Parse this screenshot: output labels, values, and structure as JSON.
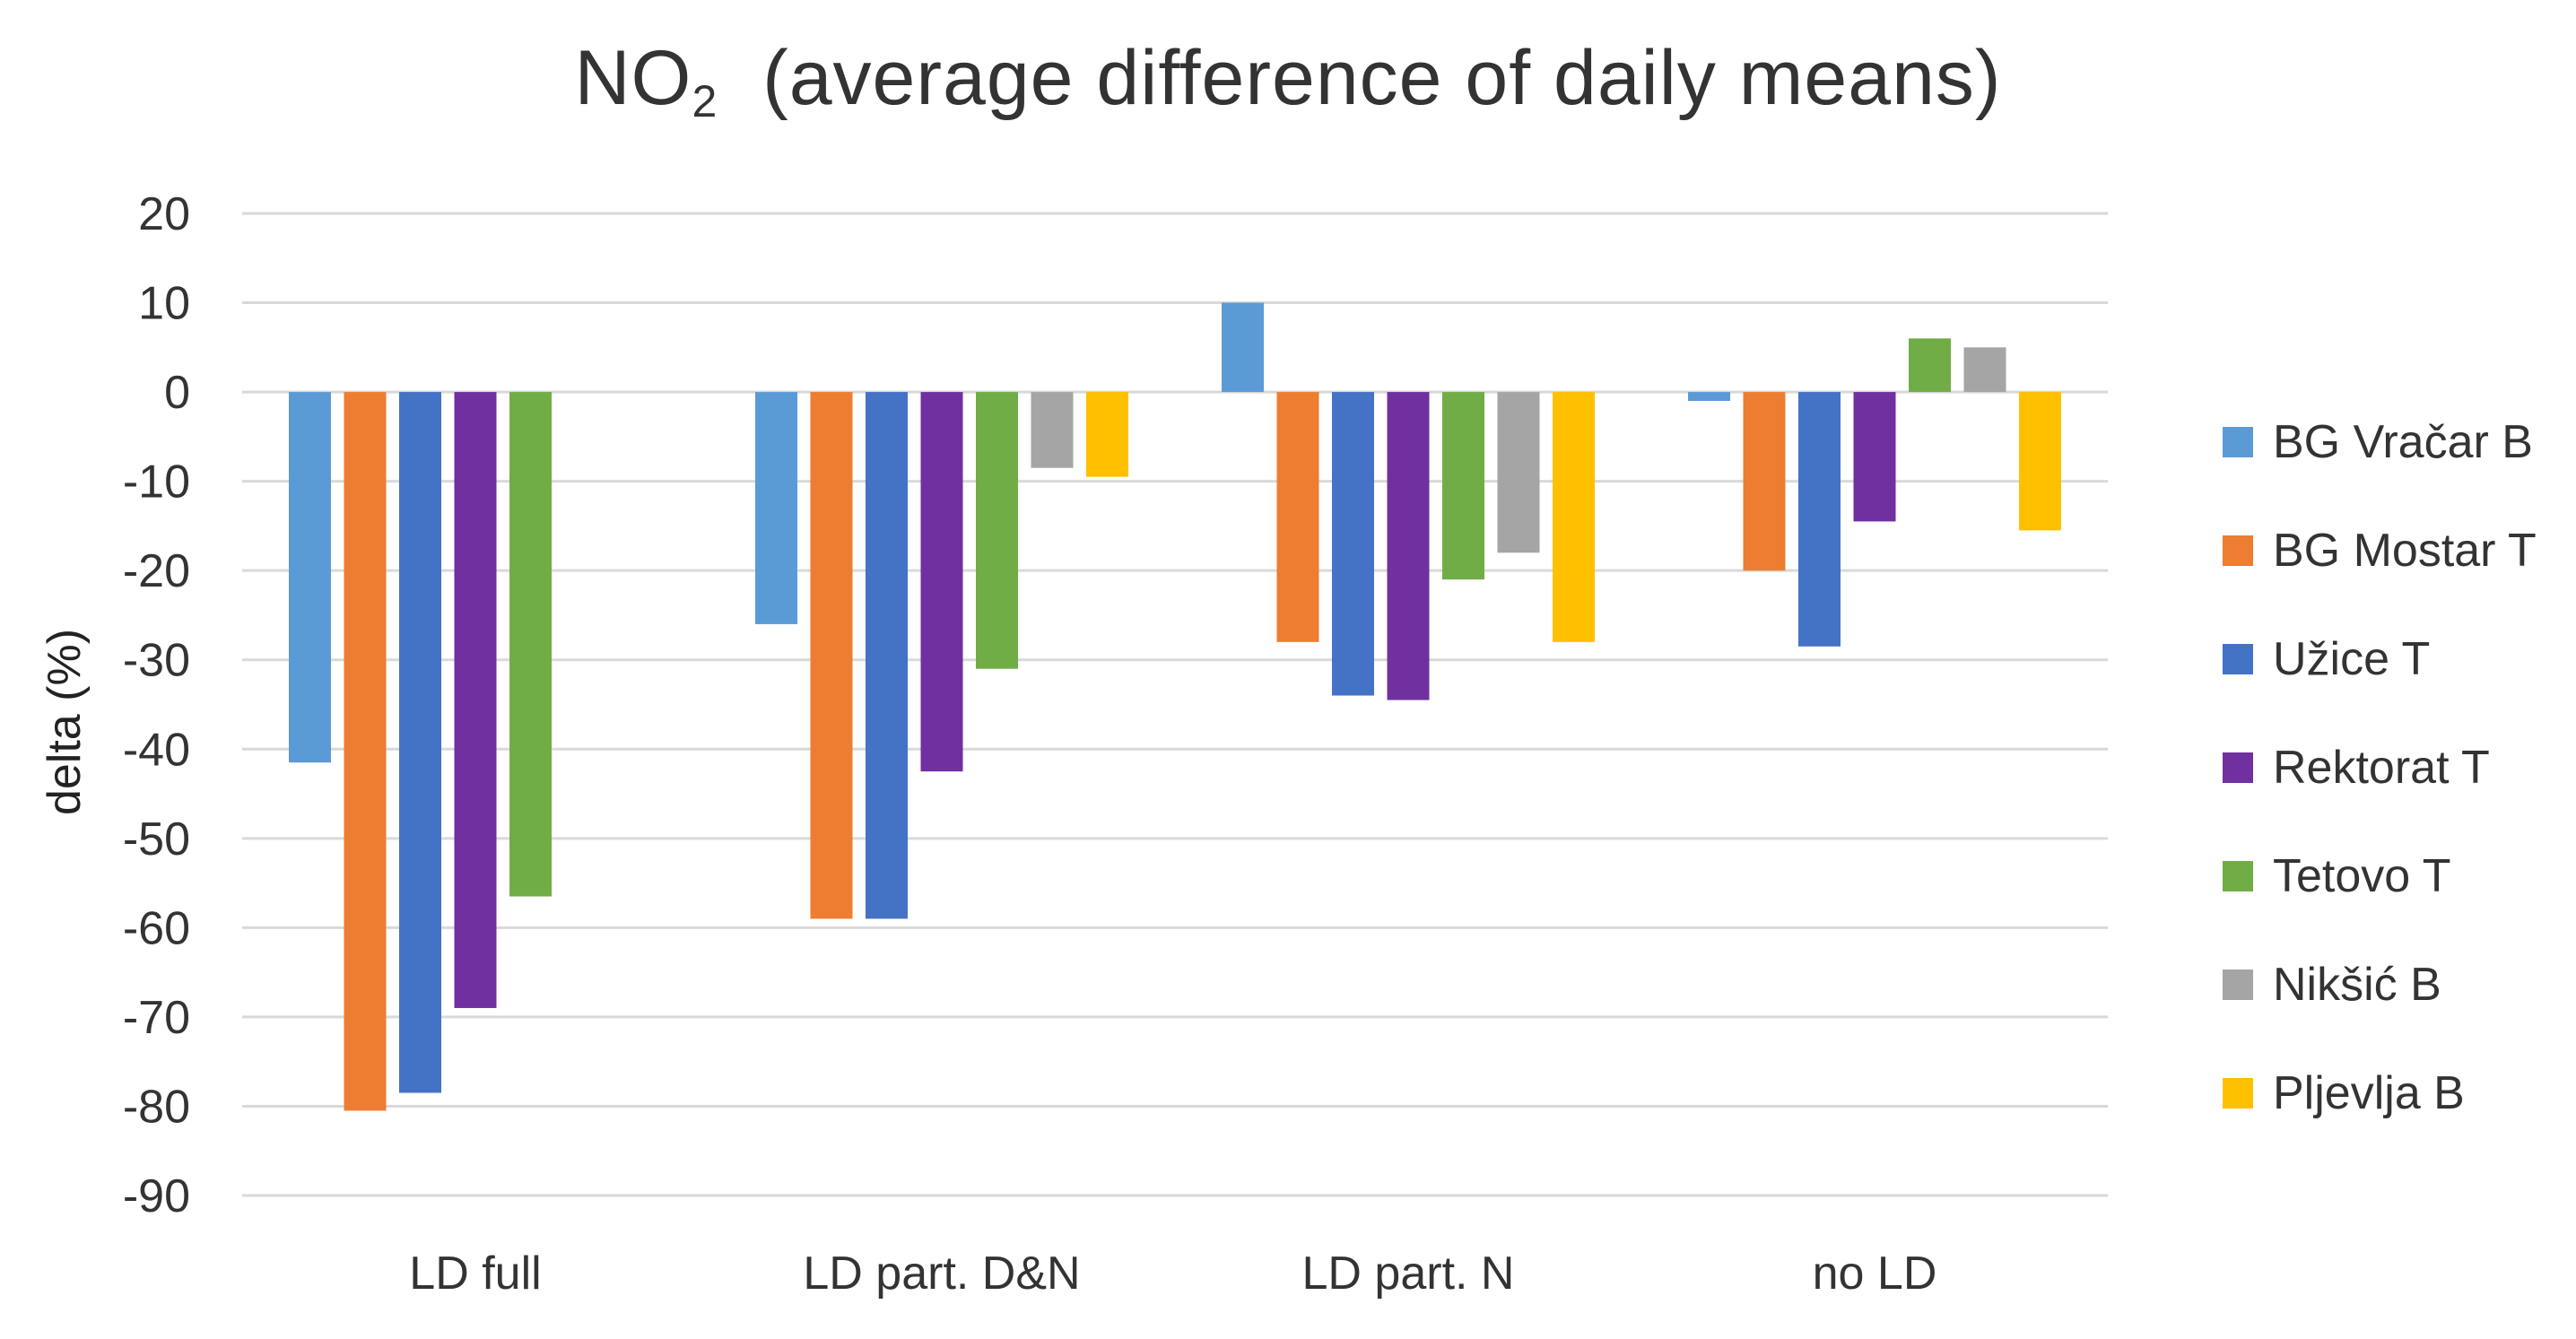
{
  "chart_data": {
    "type": "bar",
    "title": "NO",
    "title_subscript": "2",
    "title_rest": "(average difference of daily means)",
    "xlabel": "",
    "ylabel": "delta (%)",
    "ylim": [
      -90,
      20
    ],
    "yticks": [
      20,
      10,
      0,
      -10,
      -20,
      -30,
      -40,
      -50,
      -60,
      -70,
      -80,
      -90
    ],
    "grid": true,
    "legend_position": "right",
    "categories": [
      "LD full",
      "LD part. D&N",
      "LD part. N",
      "no LD"
    ],
    "series": [
      {
        "name": "BG Vračar B",
        "color": "#5B9BD5",
        "values": [
          -41.5,
          -26,
          10,
          -1
        ]
      },
      {
        "name": "BG Mostar T",
        "color": "#ED7D31",
        "values": [
          -80.5,
          -59,
          -28,
          -20
        ]
      },
      {
        "name": "Užice T",
        "color": "#4472C4",
        "values": [
          -78.5,
          -59,
          -34,
          -28.5
        ]
      },
      {
        "name": "Rektorat T",
        "color": "#7030A0",
        "values": [
          -69,
          -42.5,
          -34.5,
          -14.5
        ]
      },
      {
        "name": "Tetovo T",
        "color": "#70AD47",
        "values": [
          -56.5,
          -31,
          -21,
          6
        ]
      },
      {
        "name": "Nikšić B",
        "color": "#A5A5A5",
        "values": [
          null,
          -8.5,
          -18,
          5
        ]
      },
      {
        "name": "Pljevlja B",
        "color": "#FFC000",
        "values": [
          null,
          -9.5,
          -28,
          -15.5
        ]
      }
    ]
  }
}
